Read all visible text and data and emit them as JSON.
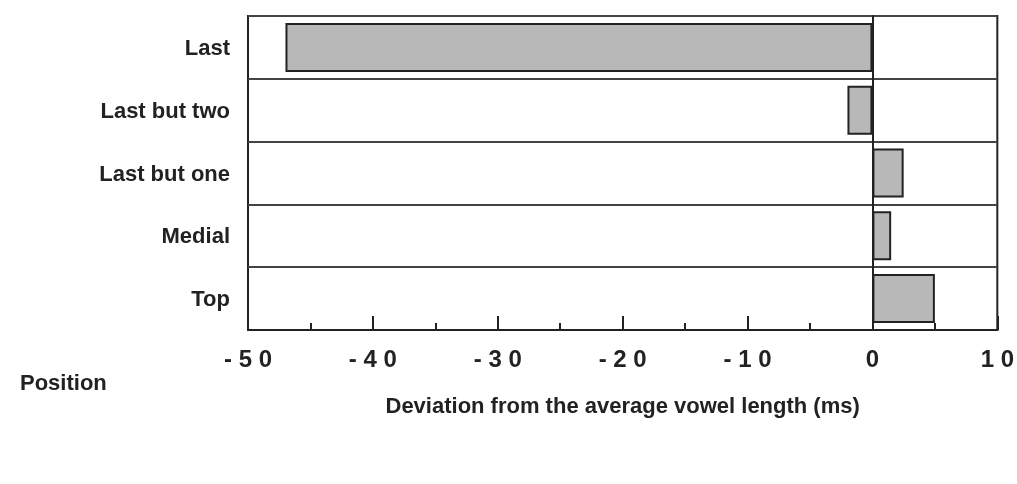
{
  "chart_data": {
    "type": "bar",
    "orientation": "horizontal",
    "categories": [
      "Last",
      "Last but two",
      "Last but one",
      "Medial",
      "Top"
    ],
    "values": [
      -47,
      -2,
      2.5,
      1.5,
      5
    ],
    "color": "#b8b8b8",
    "xlim": [
      -50,
      10
    ],
    "xticks": [
      -50,
      -40,
      -30,
      -20,
      -10,
      0,
      10
    ],
    "xlabel": "Deviation from the average vowel length (ms)",
    "ylabel": "Position",
    "grid": "y"
  }
}
